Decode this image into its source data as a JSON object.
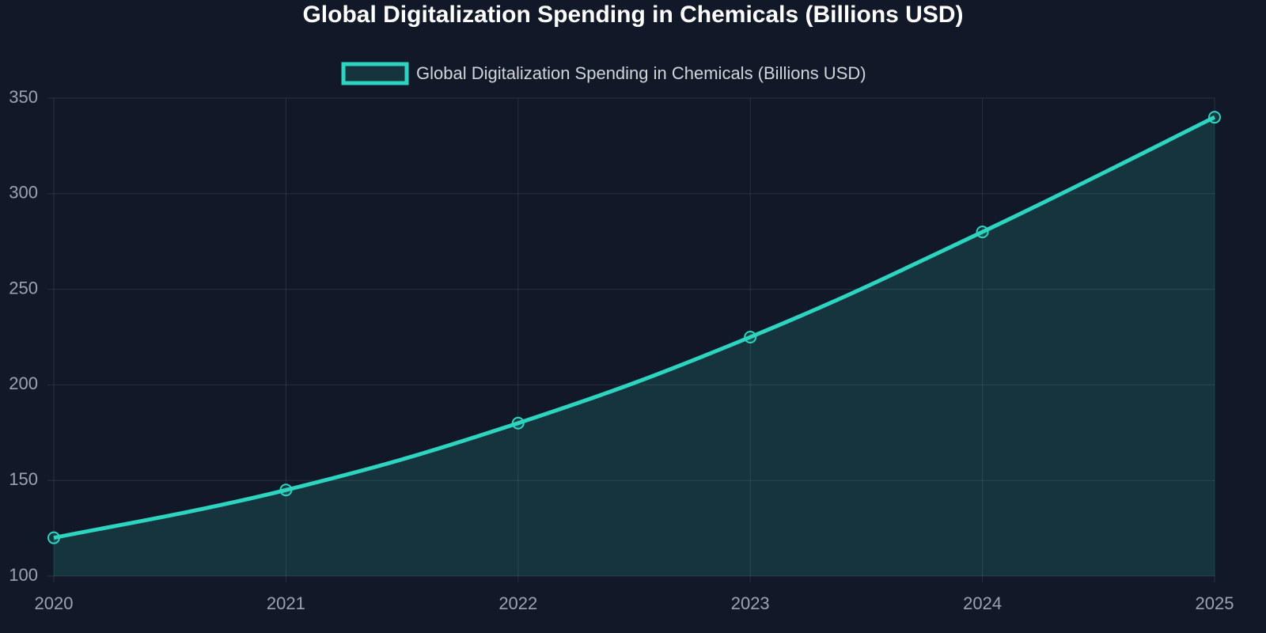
{
  "chart_data": {
    "type": "line",
    "title": "Global Digitalization Spending in Chemicals (Billions USD)",
    "x": [
      2020,
      2021,
      2022,
      2023,
      2024,
      2025
    ],
    "series": [
      {
        "name": "Global Digitalization Spending in Chemicals (Billions USD)",
        "color": "#2dd4bf",
        "values": [
          120,
          145,
          180,
          225,
          280,
          340
        ]
      }
    ],
    "xlim": [
      2020,
      2025
    ],
    "xticks": [
      2020,
      2021,
      2022,
      2023,
      2024,
      2025
    ],
    "ylim": [
      100,
      350
    ],
    "yticks": [
      100,
      150,
      200,
      250,
      300,
      350
    ],
    "grid": true,
    "fill": true,
    "legend": "top"
  }
}
